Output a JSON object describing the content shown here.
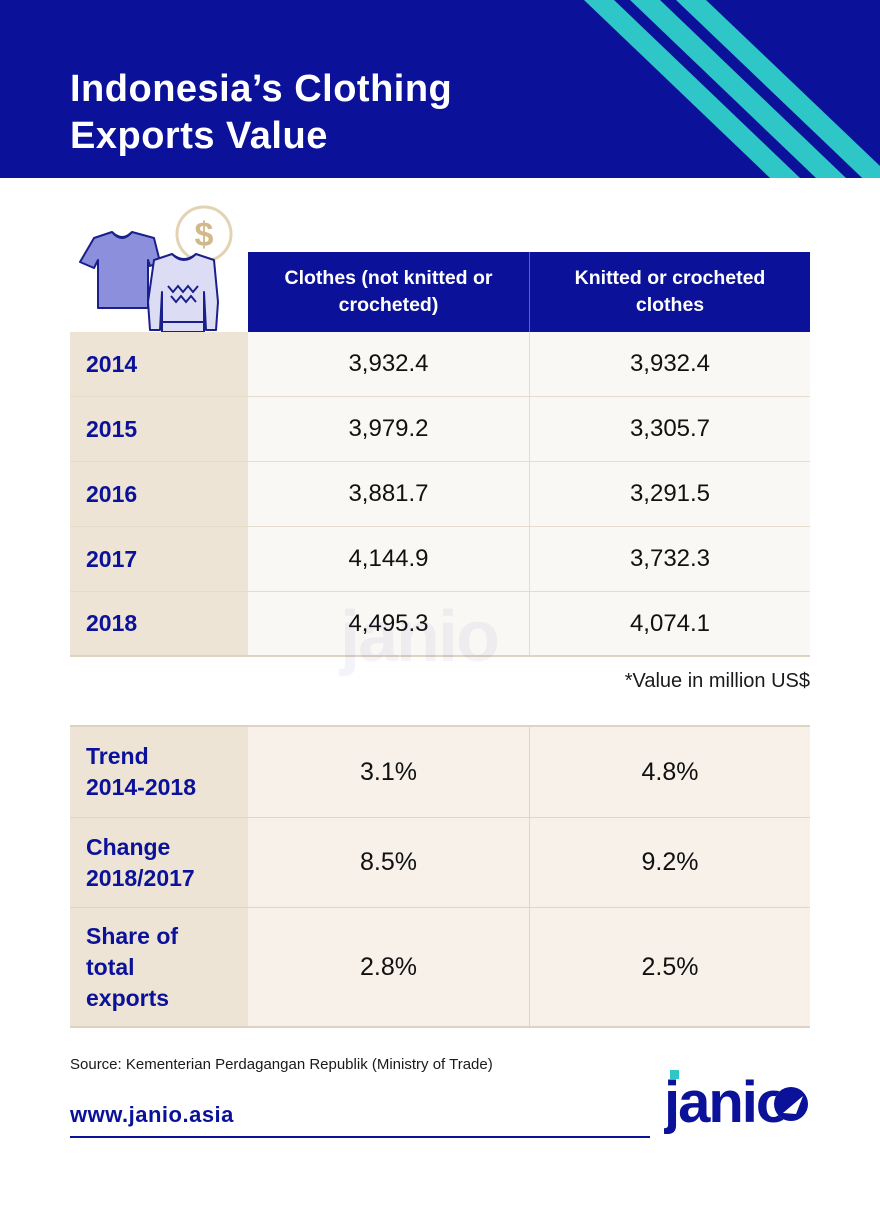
{
  "header": {
    "title_line1": "Indonesia’s Clothing",
    "title_line2": "Exports Value"
  },
  "illustration": {
    "icons": [
      "tshirt-icon",
      "sweater-icon",
      "dollar-coin-icon"
    ],
    "coin_symbol": "$"
  },
  "table": {
    "columns": [
      "Clothes (not knitted or crocheted)",
      "Knitted or crocheted clothes"
    ],
    "rows": [
      {
        "year": "2014",
        "clothes": "3,932.4",
        "knitted": "3,932.4"
      },
      {
        "year": "2015",
        "clothes": "3,979.2",
        "knitted": "3,305.7"
      },
      {
        "year": "2016",
        "clothes": "3,881.7",
        "knitted": "3,291.5"
      },
      {
        "year": "2017",
        "clothes": "4,144.9",
        "knitted": "3,732.3"
      },
      {
        "year": "2018",
        "clothes": "4,495.3",
        "knitted": "4,074.1"
      }
    ],
    "note": "*Value in million US$"
  },
  "stats": [
    {
      "label_lines": [
        "Trend",
        "2014-2018"
      ],
      "clothes": "3.1%",
      "knitted": "4.8%"
    },
    {
      "label_lines": [
        "Change",
        "2018/2017"
      ],
      "clothes": "8.5%",
      "knitted": "9.2%"
    },
    {
      "label_lines": [
        "Share of",
        "total",
        "exports"
      ],
      "clothes": "2.8%",
      "knitted": "2.5%"
    }
  ],
  "footer": {
    "source": "Source: Kementerian Perdagangan Republik (Ministry of Trade)",
    "website": "www.janio.asia",
    "logo_text": "janio"
  },
  "colors": {
    "brand_navy": "#0b1299",
    "stripe_teal": "#2ec6c6",
    "label_bg": "#ede4d6",
    "cell_bg": "#faf8f4"
  }
}
